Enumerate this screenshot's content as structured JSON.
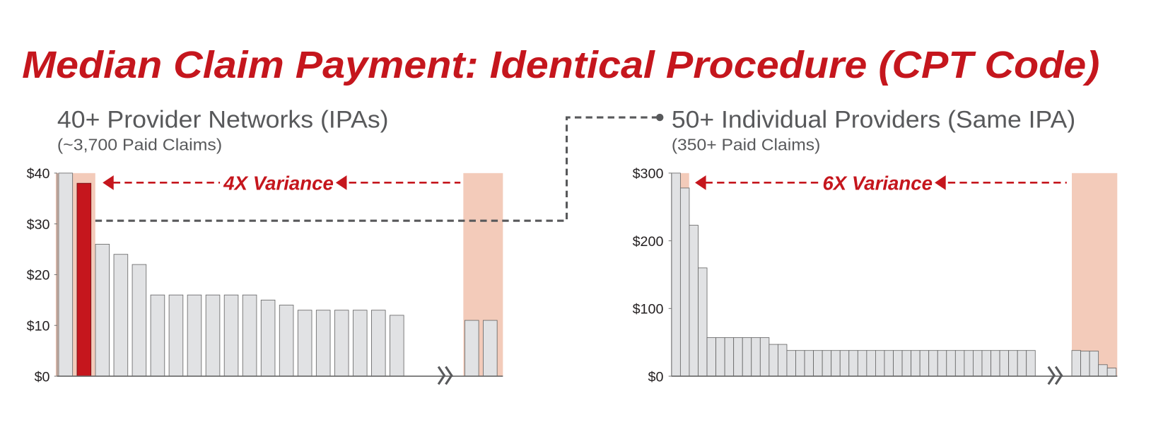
{
  "title": "Median Claim Payment: Identical Procedure (CPT Code)",
  "colors": {
    "title": "#c5161d",
    "bar": "#e1e2e4",
    "highlight_bar": "#c5161d",
    "shading": "#f3cbba",
    "connector": "#58595b"
  },
  "chart_data": [
    {
      "type": "bar",
      "title": "40+ Provider Networks (IPAs)",
      "subtitle": "(~3,700 Paid Claims)",
      "annotation": "4X Variance",
      "ylim": [
        0,
        40
      ],
      "yticks": [
        "$0",
        "$10",
        "$20",
        "$30",
        "$40"
      ],
      "ytick_values": [
        0,
        10,
        20,
        30,
        40
      ],
      "axis_break": true,
      "values": [
        40,
        38,
        26,
        24,
        22,
        16,
        16,
        16,
        16,
        16,
        16,
        15,
        14,
        13,
        13,
        13,
        13,
        13,
        12
      ],
      "values_after_break": [
        11,
        11
      ],
      "highlight_index": 1
    },
    {
      "type": "bar",
      "title": "50+ Individual Providers (Same IPA)",
      "subtitle": "(350+ Paid Claims)",
      "annotation": "6X Variance",
      "ylim": [
        0,
        300
      ],
      "yticks": [
        "$0",
        "$100",
        "$200",
        "$300"
      ],
      "ytick_values": [
        0,
        100,
        200,
        300
      ],
      "axis_break": true,
      "values": [
        300,
        278,
        223,
        160,
        57,
        57,
        57,
        57,
        57,
        57,
        57,
        47,
        47,
        38,
        38,
        38,
        38,
        38,
        38,
        38,
        38,
        38,
        38,
        38,
        38,
        38,
        38,
        38,
        38,
        38,
        38,
        38,
        38,
        38,
        38,
        38,
        38,
        38,
        38,
        38,
        38
      ],
      "values_after_break": [
        38,
        37,
        37,
        17,
        12
      ]
    }
  ]
}
